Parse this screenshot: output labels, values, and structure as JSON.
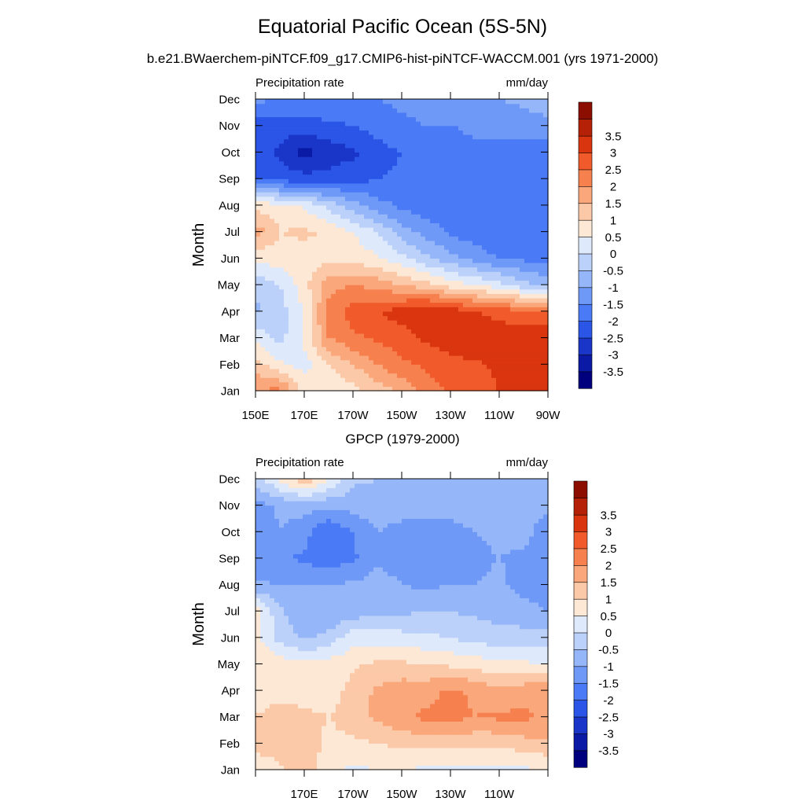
{
  "header": {
    "title": "Equatorial Pacific Ocean (5S-5N)",
    "subtitle": "b.e21.BWaerchem-piNTCF.f09_g17.CMIP6-hist-piNTCF-WACCM.001 (yrs 1971-2000)"
  },
  "palette": {
    "colors": [
      "#00007f",
      "#0a1aa5",
      "#1a36c8",
      "#2a55e6",
      "#4a7af5",
      "#6f99f7",
      "#95b6f8",
      "#bcd1f9",
      "#dee9fb",
      "#fde8d6",
      "#fcc9a8",
      "#faa77c",
      "#f6814f",
      "#f15a2a",
      "#d9350f",
      "#b52106",
      "#8c0e00"
    ],
    "levels": [
      "-3.5",
      "-3",
      "-2.5",
      "-2",
      "-1.5",
      "-1",
      "-0.5",
      "0",
      "0.5",
      "1",
      "1.5",
      "2",
      "2.5",
      "3",
      "3.5"
    ]
  },
  "axes": {
    "y_months": [
      "Jan",
      "Feb",
      "Mar",
      "Apr",
      "May",
      "Jun",
      "Jul",
      "Aug",
      "Sep",
      "Oct",
      "Nov",
      "Dec"
    ],
    "y_label": "Month"
  },
  "panels": [
    {
      "title": "",
      "left_label": "Precipitation rate",
      "right_label": "mm/day",
      "x_ticks": [
        "150E",
        "170E",
        "170W",
        "150W",
        "130W",
        "110W",
        "90W"
      ]
    },
    {
      "title": "GPCP (1979-2000)",
      "left_label": "Precipitation rate",
      "right_label": "mm/day",
      "x_ticks": [
        "",
        "170E",
        "170W",
        "150W",
        "130W",
        "110W",
        ""
      ]
    }
  ],
  "chart_data": [
    {
      "type": "heatmap",
      "title": "Equatorial Pacific Ocean (5S-5N)",
      "subtitle": "b.e21.BWaerchem-piNTCF.f09_g17.CMIP6-hist-piNTCF-WACCM.001 (yrs 1971-2000)",
      "xlabel": "",
      "ylabel": "Month",
      "units": "mm/day",
      "variable": "Precipitation rate",
      "x": [
        150,
        160,
        170,
        180,
        190,
        200,
        210,
        220,
        230,
        240,
        250,
        260,
        270
      ],
      "x_ticks": [
        "150E",
        "170E",
        "170W",
        "150W",
        "130W",
        "110W",
        "90W"
      ],
      "y": [
        "Jan",
        "Feb",
        "Mar",
        "Apr",
        "May",
        "Jun",
        "Jul",
        "Aug",
        "Sep",
        "Oct",
        "Nov",
        "Dec"
      ],
      "z": [
        [
          2.0,
          2.2,
          0.8,
          0.6,
          0.8,
          1.2,
          1.6,
          2.2,
          2.6,
          2.8,
          3.0,
          3.0,
          3.2
        ],
        [
          1.2,
          0.6,
          0.3,
          1.0,
          1.5,
          2.0,
          2.4,
          2.6,
          2.8,
          2.9,
          3.1,
          3.2,
          3.4
        ],
        [
          0.4,
          -0.2,
          0.6,
          2.0,
          2.4,
          2.6,
          2.8,
          3.1,
          3.3,
          3.5,
          3.3,
          3.5,
          3.5
        ],
        [
          -0.6,
          -0.2,
          0.5,
          2.2,
          2.7,
          3.0,
          3.2,
          3.5,
          3.3,
          3.0,
          2.8,
          2.6,
          2.4
        ],
        [
          -0.4,
          0.0,
          0.8,
          1.8,
          2.0,
          1.8,
          1.5,
          1.2,
          0.8,
          0.5,
          0.2,
          -0.3,
          -0.6
        ],
        [
          0.6,
          0.8,
          0.8,
          0.9,
          0.8,
          0.6,
          0.2,
          -0.4,
          -0.8,
          -1.2,
          -1.5,
          -1.6,
          -1.8
        ],
        [
          1.8,
          1.0,
          1.1,
          0.9,
          0.5,
          0.0,
          -0.8,
          -1.2,
          -1.6,
          -1.8,
          -2.0,
          -2.0,
          -2.0
        ],
        [
          0.8,
          0.7,
          0.4,
          -0.2,
          -0.8,
          -1.3,
          -1.6,
          -1.8,
          -1.9,
          -2.0,
          -2.0,
          -2.0,
          -2.0
        ],
        [
          -2.0,
          -2.2,
          -2.3,
          -2.3,
          -2.2,
          -2.0,
          -1.9,
          -1.9,
          -1.9,
          -1.8,
          -1.8,
          -1.9,
          -2.0
        ],
        [
          -2.1,
          -2.6,
          -3.2,
          -2.8,
          -2.6,
          -2.2,
          -2.0,
          -1.9,
          -1.8,
          -1.6,
          -1.7,
          -1.8,
          -1.8
        ],
        [
          -2.2,
          -2.3,
          -2.2,
          -2.1,
          -2.0,
          -1.8,
          -1.6,
          -1.5,
          -1.5,
          -1.4,
          -1.3,
          -1.2,
          -1.1
        ],
        [
          -1.4,
          -1.5,
          -1.6,
          -1.6,
          -1.6,
          -1.5,
          -1.4,
          -1.3,
          -1.2,
          -1.1,
          -1.0,
          -0.9,
          -0.8
        ]
      ],
      "colorbar_levels": [
        -3.5,
        -3,
        -2.5,
        -2,
        -1.5,
        -1,
        -0.5,
        0,
        0.5,
        1,
        1.5,
        2,
        2.5,
        3,
        3.5
      ]
    },
    {
      "type": "heatmap",
      "title": "GPCP (1979-2000)",
      "xlabel": "",
      "ylabel": "Month",
      "units": "mm/day",
      "variable": "Precipitation rate",
      "x": [
        150,
        160,
        170,
        180,
        190,
        200,
        210,
        220,
        230,
        240,
        250,
        260,
        270
      ],
      "x_ticks": [
        "170E",
        "170W",
        "150W",
        "130W",
        "110W"
      ],
      "y": [
        "Jan",
        "Feb",
        "Mar",
        "Apr",
        "May",
        "Jun",
        "Jul",
        "Aug",
        "Sep",
        "Oct",
        "Nov",
        "Dec"
      ],
      "z": [
        [
          0.6,
          0.9,
          1.3,
          0.6,
          0.4,
          0.5,
          0.5,
          0.4,
          0.3,
          0.4,
          0.3,
          0.4,
          0.5
        ],
        [
          1.2,
          1.3,
          1.5,
          0.8,
          0.9,
          1.0,
          1.1,
          1.2,
          1.2,
          1.1,
          1.1,
          1.3,
          1.4
        ],
        [
          1.0,
          1.4,
          1.2,
          1.0,
          1.3,
          1.6,
          1.9,
          2.1,
          2.2,
          2.0,
          2.1,
          2.1,
          1.9
        ],
        [
          0.6,
          0.7,
          0.6,
          0.7,
          1.2,
          1.6,
          1.8,
          1.8,
          2.1,
          1.9,
          1.6,
          1.8,
          2.0
        ],
        [
          1.0,
          0.8,
          0.6,
          0.7,
          0.9,
          1.1,
          1.1,
          1.0,
          0.9,
          0.8,
          0.6,
          0.6,
          0.5
        ],
        [
          0.6,
          -0.2,
          -0.6,
          -0.3,
          0.3,
          0.3,
          0.2,
          0.1,
          0.0,
          -0.2,
          -0.3,
          -0.3,
          -0.3
        ],
        [
          0.8,
          -0.4,
          -0.9,
          -1.0,
          -0.8,
          -0.6,
          -0.6,
          -0.5,
          -0.5,
          -0.6,
          -0.7,
          -0.8,
          -1.0
        ],
        [
          -0.9,
          -1.0,
          -1.0,
          -1.0,
          -0.9,
          -0.8,
          -1.0,
          -1.1,
          -1.0,
          -1.0,
          -0.9,
          -1.2,
          -1.3
        ],
        [
          -1.5,
          -1.4,
          -1.6,
          -1.8,
          -1.6,
          -1.1,
          -1.2,
          -1.3,
          -1.2,
          -1.1,
          -1.0,
          -1.1,
          -1.4
        ],
        [
          -1.3,
          -1.0,
          -1.3,
          -2.0,
          -1.5,
          -1.0,
          -1.2,
          -1.4,
          -1.2,
          -1.0,
          -0.9,
          -0.8,
          -1.3
        ],
        [
          -1.3,
          -0.9,
          -0.8,
          -0.9,
          -0.8,
          -0.7,
          -0.7,
          -0.7,
          -0.8,
          -0.7,
          -0.7,
          -0.8,
          -0.9
        ],
        [
          -0.2,
          0.6,
          1.4,
          0.6,
          -0.4,
          -0.5,
          -0.6,
          -0.6,
          -0.6,
          -0.6,
          -0.6,
          -0.6,
          -0.6
        ]
      ],
      "colorbar_levels": [
        -3.5,
        -3,
        -2.5,
        -2,
        -1.5,
        -1,
        -0.5,
        0,
        0.5,
        1,
        1.5,
        2,
        2.5,
        3,
        3.5
      ]
    }
  ]
}
